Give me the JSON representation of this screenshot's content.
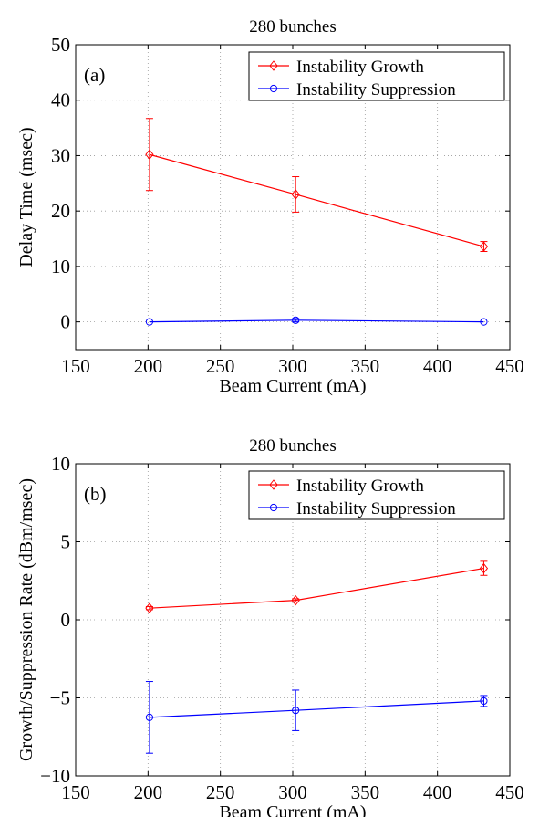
{
  "chart_data": [
    {
      "panel": "(a)",
      "type": "line",
      "title": "280 bunches",
      "xlabel": "Beam Current (mA)",
      "ylabel": "Delay Time (msec)",
      "xlim": [
        150,
        450
      ],
      "ylim": [
        -5,
        50
      ],
      "xticks": [
        150,
        200,
        250,
        300,
        350,
        400,
        450
      ],
      "yticks": [
        0,
        10,
        20,
        30,
        40,
        50
      ],
      "grid": true,
      "legend_position": "top-right",
      "series": [
        {
          "name": "Instability Growth",
          "color": "#ff0000",
          "marker": "diamond",
          "x": [
            201,
            302,
            432
          ],
          "y": [
            30.2,
            23.0,
            13.6
          ],
          "err": [
            6.5,
            3.2,
            0.9
          ]
        },
        {
          "name": "Instability Suppression",
          "color": "#0000ff",
          "marker": "circle",
          "x": [
            201,
            302,
            432
          ],
          "y": [
            0.0,
            0.3,
            0.0
          ],
          "err": [
            0.0,
            0.3,
            0.0
          ]
        }
      ]
    },
    {
      "panel": "(b)",
      "type": "line",
      "title": "280 bunches",
      "xlabel": "Beam Current (mA)",
      "ylabel": "Growth/Suppression Rate (dBm/msec)",
      "xlim": [
        150,
        450
      ],
      "ylim": [
        -10,
        10
      ],
      "xticks": [
        150,
        200,
        250,
        300,
        350,
        400,
        450
      ],
      "yticks": [
        -10,
        -5,
        0,
        5,
        10
      ],
      "grid": true,
      "legend_position": "top-right",
      "series": [
        {
          "name": "Instability Growth",
          "color": "#ff0000",
          "marker": "diamond",
          "x": [
            201,
            302,
            432
          ],
          "y": [
            0.75,
            1.25,
            3.3
          ],
          "err": [
            0.1,
            0.1,
            0.45
          ]
        },
        {
          "name": "Instability Suppression",
          "color": "#0000ff",
          "marker": "circle",
          "x": [
            201,
            302,
            432
          ],
          "y": [
            -6.25,
            -5.8,
            -5.2
          ],
          "err": [
            2.3,
            1.3,
            0.35
          ]
        }
      ]
    }
  ]
}
